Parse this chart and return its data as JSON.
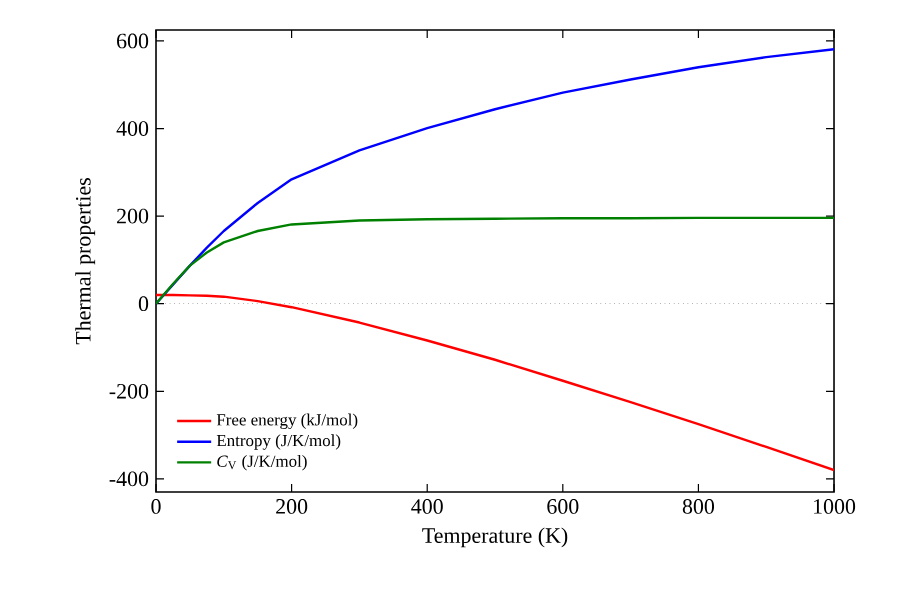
{
  "chart_data": {
    "type": "line",
    "xlabel": "Temperature (K)",
    "ylabel": "Thermal properties",
    "x": [
      0,
      25,
      50,
      75,
      100,
      150,
      200,
      300,
      400,
      500,
      600,
      700,
      800,
      900,
      1000
    ],
    "series": [
      {
        "name": "Free energy (kJ/mol)",
        "color": "#ff0000",
        "values": [
          20,
          20,
          19,
          18,
          16,
          6,
          -8,
          -43,
          -84,
          -128,
          -176,
          -225,
          -275,
          -327,
          -380
        ]
      },
      {
        "name": "Entropy (J/K/mol)",
        "color": "#0000ff",
        "values": [
          0,
          null,
          87,
          128,
          166,
          230,
          284,
          350,
          401,
          444,
          482,
          512,
          540,
          563,
          581
        ]
      },
      {
        "name": "*C*$_{V}$ (J/K/mol)",
        "color": "#008000",
        "values": [
          0,
          45,
          87,
          117,
          140,
          166,
          181,
          190,
          193,
          194,
          195,
          195,
          196,
          196,
          196
        ]
      }
    ],
    "xlim": [
      0,
      1000
    ],
    "ylim": [
      -430,
      625
    ],
    "xticks": [
      0,
      200,
      400,
      600,
      800,
      1000
    ],
    "yticks": [
      -400,
      -200,
      0,
      200,
      400,
      600
    ],
    "ref_lines": [
      {
        "axis": "y",
        "value": 0,
        "color": "#000000",
        "line_style": "dotted"
      }
    ],
    "legend": "bottom left",
    "marker": "none",
    "line_style": "solid",
    "grid": false
  }
}
